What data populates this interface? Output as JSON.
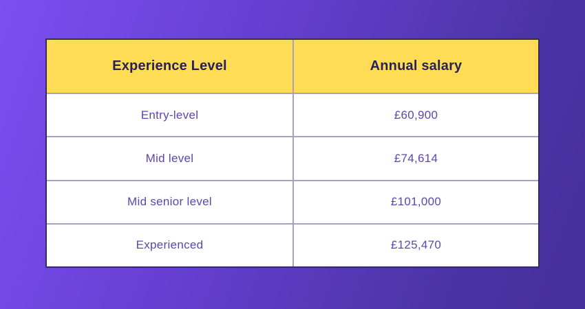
{
  "background": {
    "gradient_start": "#7d4ef3",
    "gradient_end": "#452f9a"
  },
  "table": {
    "colors": {
      "header_bg": "#ffdc55",
      "header_text": "#2a2153",
      "cell_text": "#5b46ae",
      "grid_line": "#a79ec9",
      "outer_border": "#362b5e",
      "row_bg": "#ffffff"
    },
    "headers": {
      "experience_level": "Experience Level",
      "annual_salary": "Annual salary"
    },
    "rows": [
      {
        "experience_level": "Entry-level",
        "annual_salary": "£60,900"
      },
      {
        "experience_level": "Mid level",
        "annual_salary": "£74,614"
      },
      {
        "experience_level": "Mid senior level",
        "annual_salary": "£101,000"
      },
      {
        "experience_level": "Experienced",
        "annual_salary": "£125,470"
      }
    ]
  },
  "chart_data": {
    "type": "table",
    "title": "",
    "columns": [
      "Experience Level",
      "Annual salary"
    ],
    "rows": [
      [
        "Entry-level",
        "£60,900"
      ],
      [
        "Mid level",
        "£74,614"
      ],
      [
        "Mid senior level",
        "£101,000"
      ],
      [
        "Experienced",
        "£125,470"
      ]
    ],
    "categories": [
      "Entry-level",
      "Mid level",
      "Mid senior level",
      "Experienced"
    ],
    "values_gbp": [
      60900,
      74614,
      101000,
      125470
    ],
    "currency": "GBP"
  }
}
